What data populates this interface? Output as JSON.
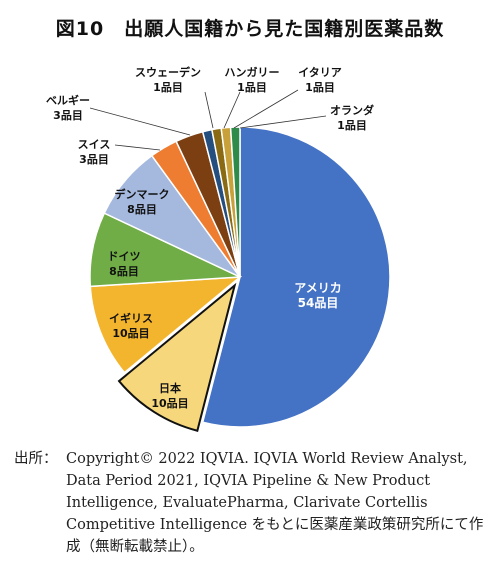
{
  "chart_data": {
    "type": "pie",
    "title": "図10　出願人国籍から見た国籍別医薬品数",
    "unit": "品目",
    "slices": [
      {
        "name": "アメリカ",
        "value": 54,
        "value_label": "54品目",
        "color": "#4472c4"
      },
      {
        "name": "日本",
        "value": 10,
        "value_label": "10品目",
        "color": "#f6d77c",
        "exploded": true
      },
      {
        "name": "イギリス",
        "value": 10,
        "value_label": "10品目",
        "color": "#f4b52e"
      },
      {
        "name": "ドイツ",
        "value": 8,
        "value_label": "8品目",
        "color": "#70ad47"
      },
      {
        "name": "デンマーク",
        "value": 8,
        "value_label": "8品目",
        "color": "#a5b8de"
      },
      {
        "name": "スイス",
        "value": 3,
        "value_label": "3品目",
        "color": "#ee7d31"
      },
      {
        "name": "ベルギー",
        "value": 3,
        "value_label": "3品目",
        "color": "#7b3f12"
      },
      {
        "name": "スウェーデン",
        "value": 1,
        "value_label": "1品目",
        "color": "#254f7e"
      },
      {
        "name": "ハンガリー",
        "value": 1,
        "value_label": "1品目",
        "color": "#8a6a12"
      },
      {
        "name": "イタリア",
        "value": 1,
        "value_label": "1品目",
        "color": "#c9a13a"
      },
      {
        "name": "オランダ",
        "value": 1,
        "value_label": "1品目",
        "color": "#2e8b4a"
      }
    ]
  },
  "source": {
    "prefix": "出所：",
    "text": "Copyright© 2022 IQVIA. IQVIA World Review Analyst, Data Period 2021, IQVIA Pipeline & New Product Intelligence, EvaluatePharma, Clarivate Cortellis Competitive Intelligence をもとに医薬産業政策研究所にて作成（無断転載禁止）。"
  }
}
